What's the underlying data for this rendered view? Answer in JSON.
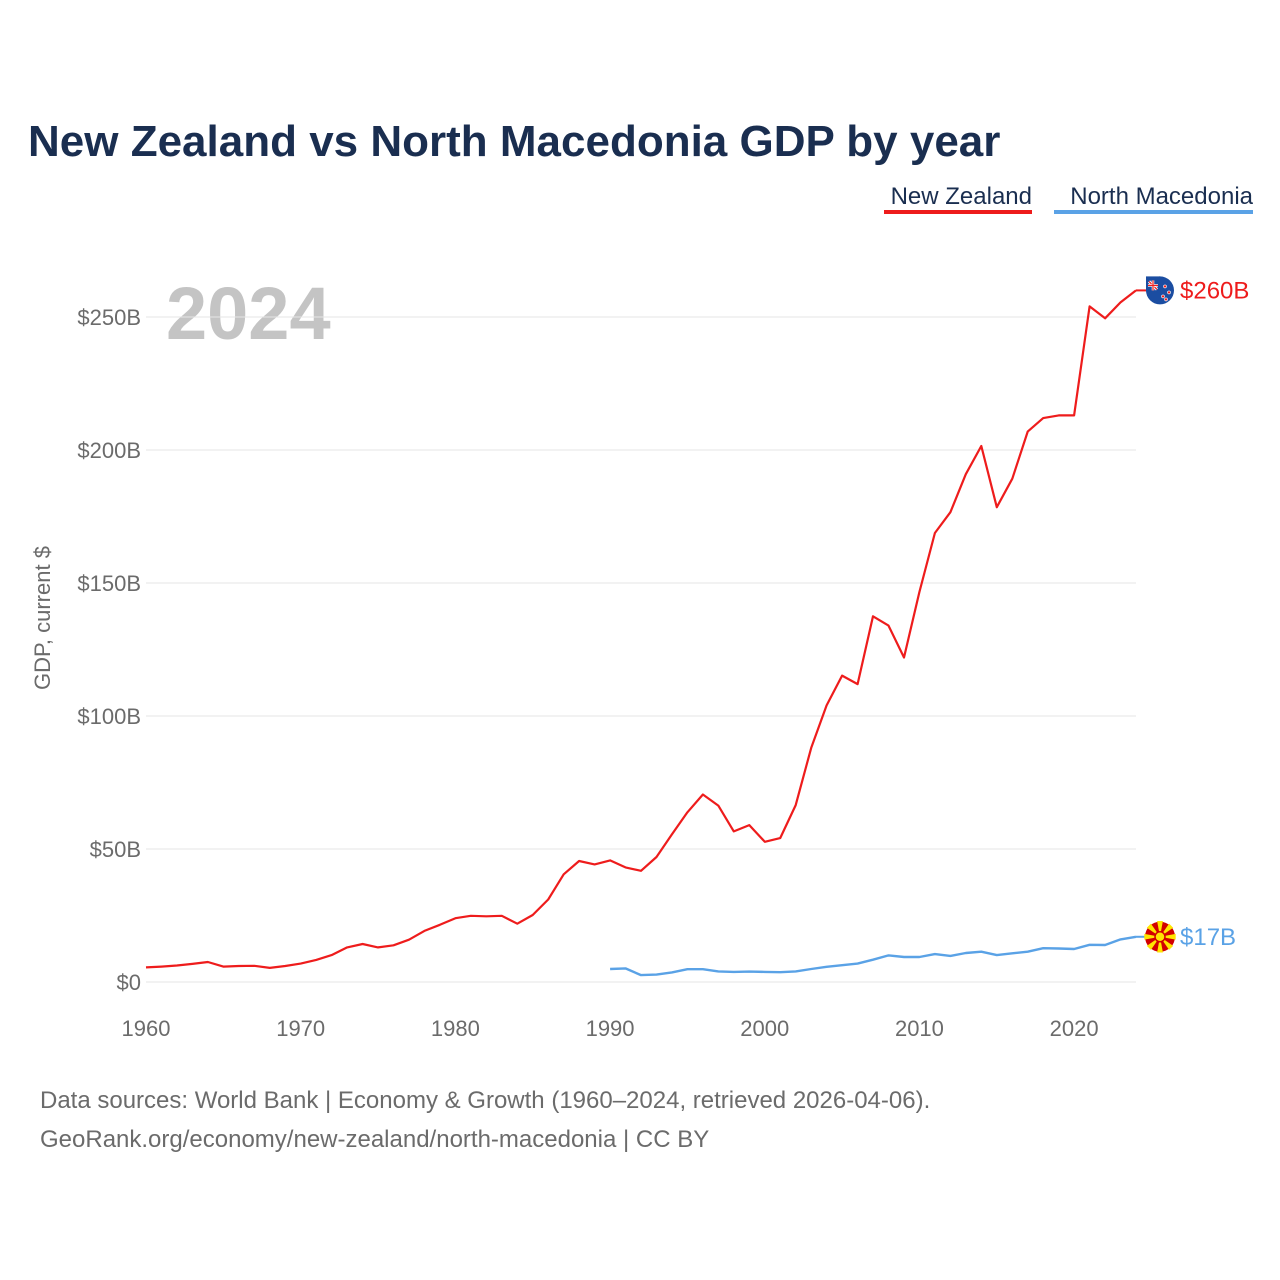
{
  "title": "New Zealand vs North Macedonia GDP by year",
  "current_year": "2024",
  "source": {
    "line1": "Data sources: World Bank | Economy & Growth (1960–2024, retrieved 2026-04-06).",
    "line2": "GeoRank.org/economy/new-zealand/north-macedonia | CC BY"
  },
  "colors": {
    "nz": "#ee1c1c",
    "mk": "#5aa2e6",
    "title": "#1a2e50"
  },
  "chart_data": {
    "type": "line",
    "title": "New Zealand vs North Macedonia GDP by year",
    "xlabel": "",
    "ylabel": "GDP, current $",
    "xlim": [
      1960,
      2024
    ],
    "ylim": [
      0,
      270
    ],
    "y_unit": "billion USD",
    "x_ticks": [
      1960,
      1970,
      1980,
      1990,
      2000,
      2010,
      2020
    ],
    "x_tick_labels": [
      "1960",
      "1970",
      "1980",
      "1990",
      "2000",
      "2010",
      "2020"
    ],
    "y_ticks": [
      0,
      50,
      100,
      150,
      200,
      250
    ],
    "y_tick_labels": [
      "$0",
      "$50B",
      "$100B",
      "$150B",
      "$200B",
      "$250B"
    ],
    "grid": true,
    "legend_position": "top-right",
    "series": [
      {
        "name": "New Zealand",
        "key": "nz",
        "end_label": "$260B",
        "x": [
          1960,
          1961,
          1962,
          1963,
          1964,
          1965,
          1966,
          1967,
          1968,
          1969,
          1970,
          1971,
          1972,
          1973,
          1974,
          1975,
          1976,
          1977,
          1978,
          1979,
          1980,
          1981,
          1982,
          1983,
          1984,
          1985,
          1986,
          1987,
          1988,
          1989,
          1990,
          1991,
          1992,
          1993,
          1994,
          1995,
          1996,
          1997,
          1998,
          1999,
          2000,
          2001,
          2002,
          2003,
          2004,
          2005,
          2006,
          2007,
          2008,
          2009,
          2010,
          2011,
          2012,
          2013,
          2014,
          2015,
          2016,
          2017,
          2018,
          2019,
          2020,
          2021,
          2022,
          2023,
          2024
        ],
        "values": [
          5.5,
          5.8,
          6.2,
          6.8,
          7.5,
          5.8,
          6.0,
          6.1,
          5.3,
          6.0,
          6.9,
          8.3,
          10.1,
          13.0,
          14.3,
          13.0,
          13.8,
          15.9,
          19.2,
          21.5,
          24.0,
          24.9,
          24.7,
          24.9,
          21.9,
          25.2,
          31.0,
          40.5,
          45.5,
          44.2,
          45.7,
          43.1,
          41.8,
          47.0,
          55.5,
          63.8,
          70.5,
          66.3,
          56.6,
          59.0,
          52.7,
          54.1,
          66.5,
          88.0,
          104.0,
          115.2,
          112.0,
          137.5,
          134.0,
          122.0,
          146.6,
          168.8,
          176.6,
          190.9,
          201.5,
          178.5,
          189.2,
          206.9,
          212.0,
          213.0,
          213.0,
          254.0,
          249.5,
          255.5,
          260.0
        ]
      },
      {
        "name": "North Macedonia",
        "key": "mk",
        "end_label": "$17B",
        "x": [
          1990,
          1991,
          1992,
          1993,
          1994,
          1995,
          1996,
          1997,
          1998,
          1999,
          2000,
          2001,
          2002,
          2003,
          2004,
          2005,
          2006,
          2007,
          2008,
          2009,
          2010,
          2011,
          2012,
          2013,
          2014,
          2015,
          2016,
          2017,
          2018,
          2019,
          2020,
          2021,
          2022,
          2023,
          2024
        ],
        "values": [
          4.9,
          5.1,
          2.6,
          2.8,
          3.6,
          4.8,
          4.8,
          4.0,
          3.8,
          3.9,
          3.8,
          3.7,
          4.0,
          4.9,
          5.7,
          6.3,
          6.9,
          8.4,
          10.0,
          9.4,
          9.4,
          10.5,
          9.8,
          10.9,
          11.4,
          10.1,
          10.8,
          11.4,
          12.7,
          12.6,
          12.4,
          14.0,
          13.9,
          16.0,
          17.0
        ]
      }
    ]
  }
}
